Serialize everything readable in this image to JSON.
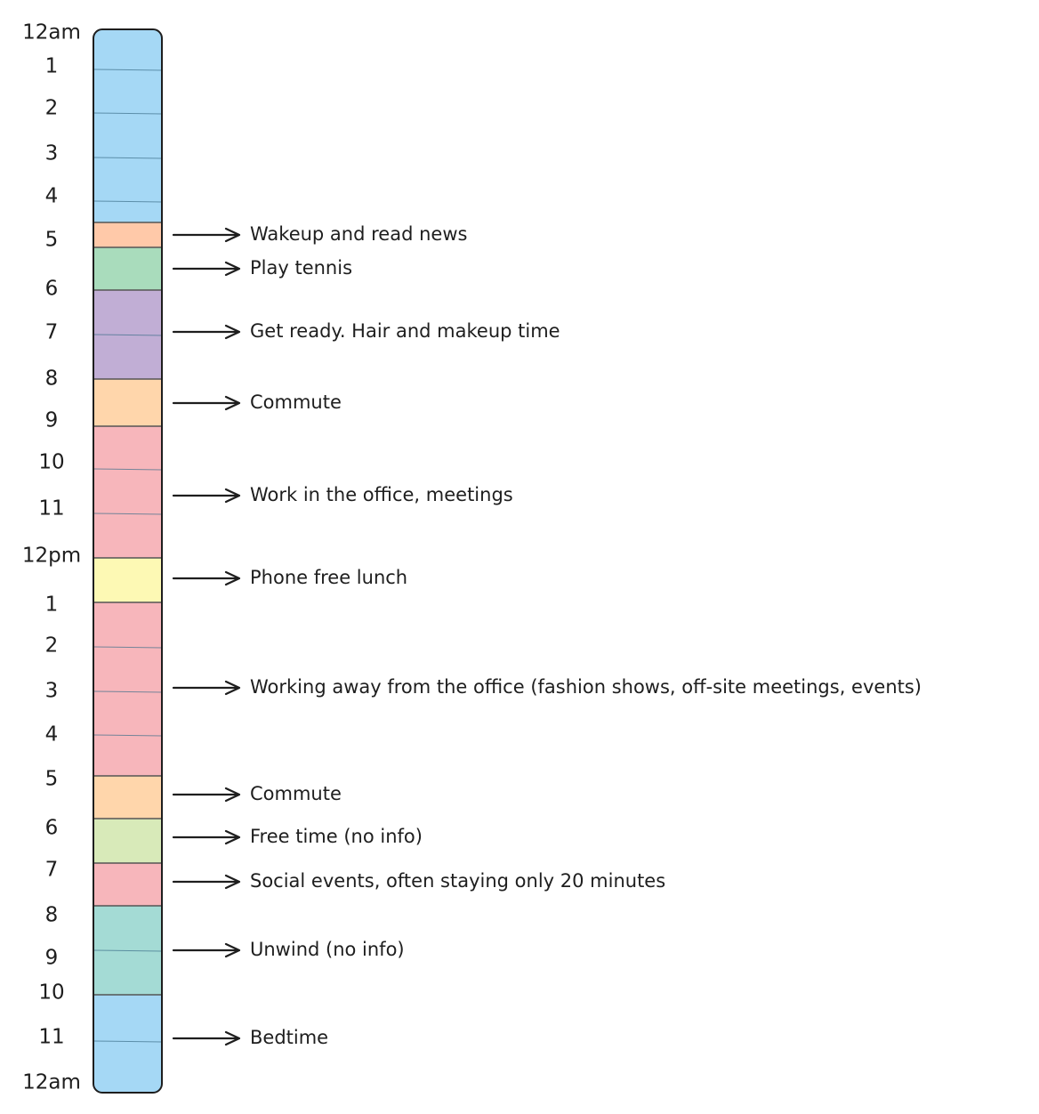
{
  "hours": [
    "12am",
    "1",
    "2",
    "3",
    "4",
    "5",
    "6",
    "7",
    "8",
    "9",
    "10",
    "11",
    "12pm",
    "1",
    "2",
    "3",
    "4",
    "5",
    "6",
    "7",
    "8",
    "9",
    "10",
    "11",
    "12am"
  ],
  "activities": [
    {
      "label": "Wakeup and read news"
    },
    {
      "label": "Play tennis"
    },
    {
      "label": "Get ready. Hair and makeup time"
    },
    {
      "label": "Commute"
    },
    {
      "label": "Work in the office, meetings"
    },
    {
      "label": "Phone free lunch"
    },
    {
      "label": "Working away from the office (fashion shows, off-site meetings, events)"
    },
    {
      "label": "Commute"
    },
    {
      "label": "Free time (no info)"
    },
    {
      "label": "Social events, often staying only 20 minutes"
    },
    {
      "label": "Unwind (no info)"
    },
    {
      "label": "Bedtime"
    }
  ]
}
